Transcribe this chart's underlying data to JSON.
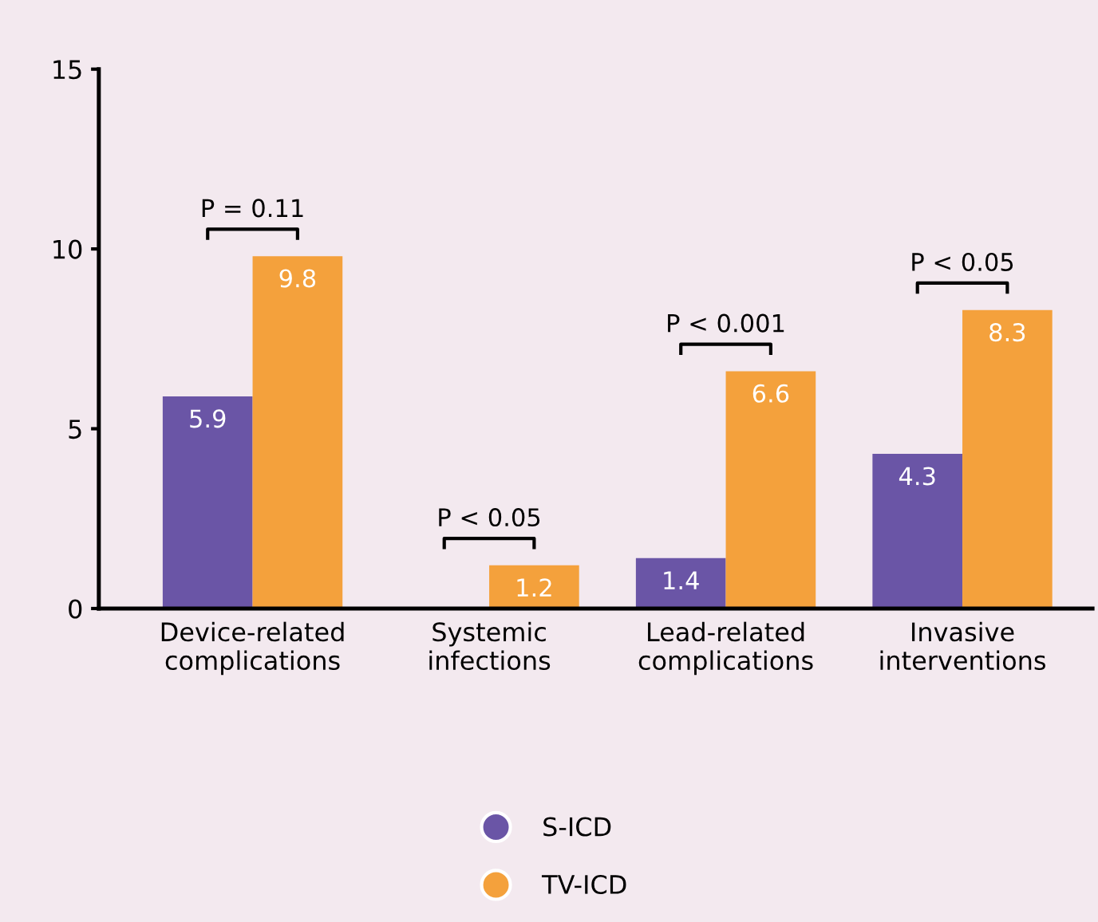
{
  "chart_data": {
    "type": "bar",
    "categories": [
      "Device-related\ncomplications",
      "Systemic\ninfections",
      "Lead-related\ncomplications",
      "Invasive\ninterventions"
    ],
    "series": [
      {
        "name": "S-ICD",
        "color": "#6a55a6",
        "values": [
          5.9,
          null,
          1.4,
          4.3
        ]
      },
      {
        "name": "TV-ICD",
        "color": "#f4a13c",
        "values": [
          9.8,
          1.2,
          6.6,
          8.3
        ]
      }
    ],
    "ylim": [
      0,
      15
    ],
    "yticks": [
      0,
      5,
      10,
      15
    ],
    "grid": false,
    "legend": "bottom",
    "data_labels": true,
    "annotations": [
      "P = 0.11",
      "P < 0.05",
      "P < 0.001",
      "P < 0.05"
    ]
  }
}
